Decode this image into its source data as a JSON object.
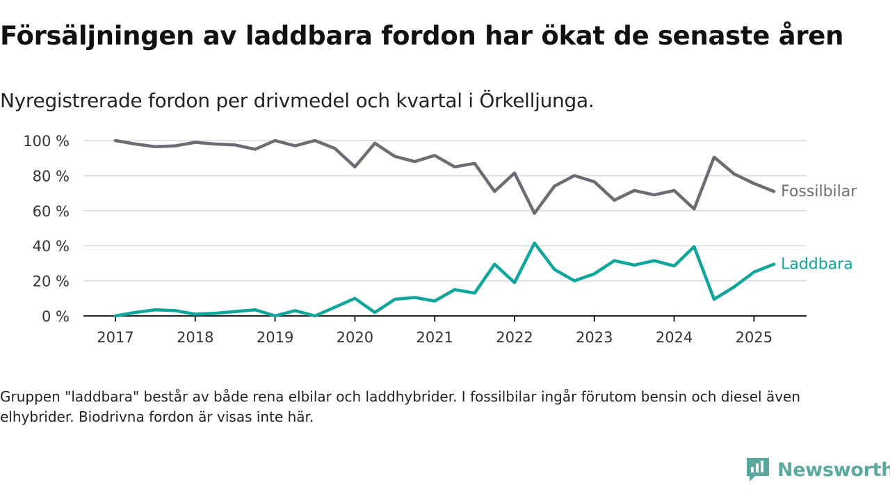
{
  "title": "Försäljningen av laddbara fordon har ökat de senaste åren",
  "subtitle": "Nyregistrerade fordon per drivmedel och kvartal i Örkelljunga.",
  "footnote": "Gruppen \"laddbara\" består av både rena elbilar och laddhybrider. I fossilbilar ingår förutom bensin och diesel även elhybrider. Biodrivna fordon är visas inte här.",
  "brand": {
    "name": "Newsworthy",
    "color": "#5ba89e",
    "icon": "newsworthy-logo-icon"
  },
  "chart_data": {
    "type": "line",
    "x_tick_labels": [
      "2017",
      "2018",
      "2019",
      "2020",
      "2021",
      "2022",
      "2023",
      "2024",
      "2025"
    ],
    "y_tick_labels": [
      "0 %",
      "20 %",
      "40 %",
      "60 %",
      "80 %",
      "100 %"
    ],
    "ylim": [
      0,
      100
    ],
    "x": [
      "2017 Q1",
      "2017 Q2",
      "2017 Q3",
      "2017 Q4",
      "2018 Q1",
      "2018 Q2",
      "2018 Q3",
      "2018 Q4",
      "2019 Q1",
      "2019 Q2",
      "2019 Q3",
      "2019 Q4",
      "2020 Q1",
      "2020 Q2",
      "2020 Q3",
      "2020 Q4",
      "2021 Q1",
      "2021 Q2",
      "2021 Q3",
      "2021 Q4",
      "2022 Q1",
      "2022 Q2",
      "2022 Q3",
      "2022 Q4",
      "2023 Q1",
      "2023 Q2",
      "2023 Q3",
      "2023 Q4",
      "2024 Q1",
      "2024 Q2",
      "2024 Q3",
      "2024 Q4",
      "2025 Q1",
      "2025 Q2"
    ],
    "grid": true,
    "series": [
      {
        "name": "Fossilbilar",
        "color": "#6c6c75",
        "values": [
          100,
          98,
          96.5,
          97,
          99,
          98,
          97.5,
          95,
          100,
          97,
          100,
          95.5,
          85,
          98.5,
          91,
          88,
          91.5,
          85,
          87,
          71,
          81.5,
          58.5,
          74,
          80,
          76.5,
          66,
          71.5,
          69,
          71.5,
          61,
          90.5,
          81,
          75.5,
          71
        ]
      },
      {
        "name": "Laddbara",
        "color": "#0ea59a",
        "values": [
          0,
          2,
          3.5,
          3,
          1,
          1.5,
          2.5,
          3.5,
          0,
          3,
          0,
          5,
          10,
          2,
          9.5,
          10.5,
          8.5,
          15,
          13,
          29.5,
          19,
          41.5,
          26.5,
          20,
          24,
          31.5,
          29,
          31.5,
          28.5,
          39.5,
          9.5,
          16.5,
          25,
          29.5
        ]
      }
    ]
  }
}
